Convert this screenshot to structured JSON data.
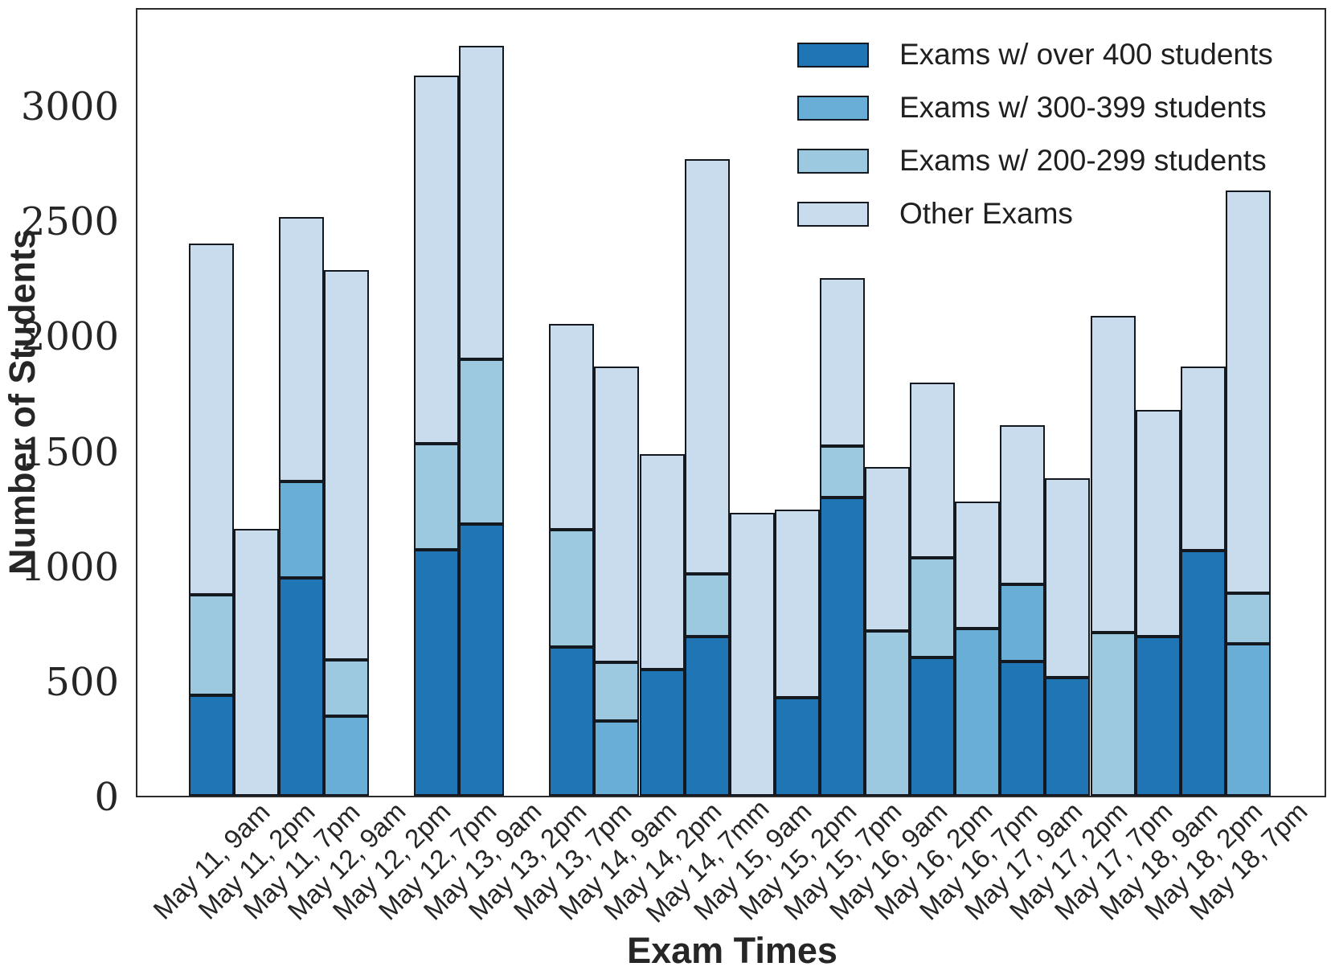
{
  "chart_data": {
    "type": "bar",
    "stacked": true,
    "title": "",
    "xlabel": "Exam Times",
    "ylabel": "Number of Students",
    "ylim": [
      0,
      3430
    ],
    "yticks": [
      0,
      500,
      1000,
      1500,
      2000,
      2500,
      3000
    ],
    "grid": false,
    "legend_position": "upper right",
    "bar_edge_color": "#14181f",
    "categories": [
      "May 11, 9am",
      "May 11, 2pm",
      "May 11, 7pm",
      "May 12, 9am",
      "May 12, 2pm",
      "May 12, 7pm",
      "May 13, 9am",
      "May 13, 2pm",
      "May 13, 7pm",
      "May 14, 9am",
      "May 14, 2pm",
      "May 14, 7mm",
      "May 15, 9am",
      "May 15, 2pm",
      "May 15, 7pm",
      "May 16, 9am",
      "May 16, 2pm",
      "May 16, 7pm",
      "May 17, 9am",
      "May 17, 2pm",
      "May 17, 7pm",
      "May 18, 9am",
      "May 18, 2pm",
      "May 18, 7pm"
    ],
    "series": [
      {
        "name": "Exams w/ over 400 students",
        "color": "#2076b4",
        "values": [
          435,
          0,
          945,
          0,
          0,
          1070,
          1180,
          0,
          645,
          0,
          550,
          690,
          0,
          425,
          1295,
          0,
          600,
          0,
          585,
          515,
          0,
          690,
          1065,
          0
        ]
      },
      {
        "name": "Exams w/ 300-399 students",
        "color": "#69aed6",
        "values": [
          0,
          0,
          420,
          345,
          0,
          0,
          0,
          0,
          0,
          325,
          0,
          0,
          0,
          0,
          0,
          0,
          0,
          725,
          335,
          0,
          0,
          0,
          0,
          660
        ]
      },
      {
        "name": "Exams w/ 200-299 students",
        "color": "#9cc8e0",
        "values": [
          440,
          0,
          0,
          245,
          0,
          460,
          715,
          0,
          510,
          255,
          0,
          275,
          0,
          0,
          225,
          715,
          435,
          0,
          0,
          0,
          710,
          0,
          0,
          220
        ]
      },
      {
        "name": "Other Exams",
        "color": "#c9dcee",
        "values": [
          1525,
          1160,
          1150,
          1695,
          0,
          1600,
          1365,
          0,
          895,
          1285,
          935,
          1800,
          1230,
          820,
          730,
          715,
          760,
          555,
          690,
          865,
          1375,
          985,
          800,
          1750
        ]
      }
    ]
  }
}
